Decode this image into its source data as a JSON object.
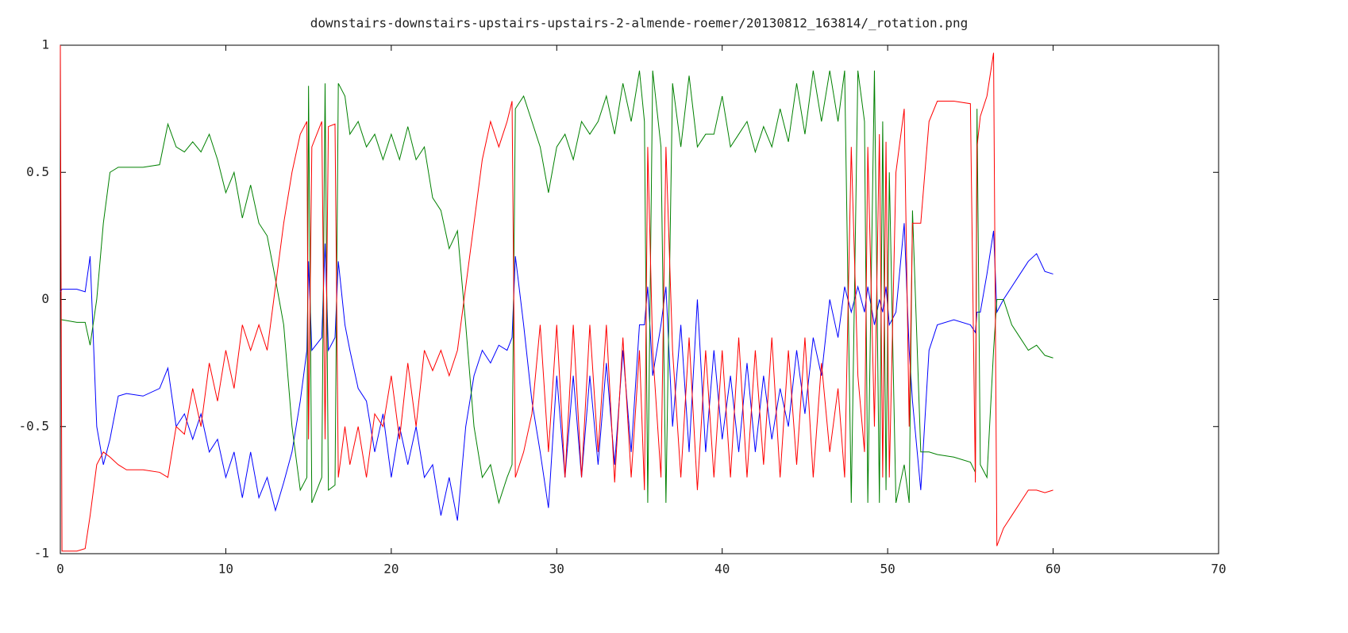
{
  "chart_data": {
    "type": "line",
    "title": "downstairs-downstairs-upstairs-upstairs-2-almende-roemer/20130812_163814/_rotation.png",
    "x": [
      0,
      0.1,
      1,
      1.5,
      1.8,
      2.2,
      2.6,
      3,
      3.5,
      4,
      5,
      6,
      6.5,
      7,
      7.5,
      8,
      8.5,
      9,
      9.5,
      10,
      10.5,
      11,
      11.5,
      12,
      12.5,
      13,
      13.5,
      14,
      14.5,
      14.9,
      15,
      15.2,
      15.8,
      16,
      16.2,
      16.6,
      16.8,
      17.2,
      17.5,
      18,
      18.5,
      19,
      19.5,
      20,
      20.5,
      21,
      21.5,
      22,
      22.5,
      23,
      23.5,
      24,
      24.5,
      25,
      25.5,
      26,
      26.5,
      27,
      27.3,
      27.5,
      28,
      28.5,
      29,
      29.5,
      30,
      30.5,
      31,
      31.5,
      32,
      32.5,
      33,
      33.5,
      34,
      34.5,
      35,
      35.3,
      35.5,
      35.8,
      36.3,
      36.6,
      37,
      37.5,
      38,
      38.5,
      39,
      39.5,
      40,
      40.5,
      41,
      41.5,
      42,
      42.5,
      43,
      43.5,
      44,
      44.5,
      45,
      45.5,
      46,
      46.5,
      47,
      47.4,
      47.8,
      48.2,
      48.6,
      48.8,
      49.2,
      49.5,
      49.7,
      49.9,
      50.1,
      50.5,
      51,
      51.3,
      51.5,
      52,
      52.5,
      53,
      54,
      55,
      55.3,
      55.4,
      55.6,
      56,
      56.4,
      56.6,
      57,
      57.5,
      58,
      58.5,
      59,
      59.5,
      60
    ],
    "series": [
      {
        "color": "#0000ff",
        "values": [
          0.03,
          0.04,
          0.04,
          0.03,
          0.17,
          -0.5,
          -0.65,
          -0.55,
          -0.38,
          -0.37,
          -0.38,
          -0.35,
          -0.27,
          -0.5,
          -0.45,
          -0.55,
          -0.45,
          -0.6,
          -0.55,
          -0.7,
          -0.6,
          -0.78,
          -0.6,
          -0.78,
          -0.7,
          -0.83,
          -0.72,
          -0.6,
          -0.4,
          -0.2,
          0.15,
          -0.2,
          -0.15,
          0.22,
          -0.2,
          -0.15,
          0.15,
          -0.1,
          -0.2,
          -0.35,
          -0.4,
          -0.6,
          -0.45,
          -0.7,
          -0.5,
          -0.65,
          -0.5,
          -0.7,
          -0.65,
          -0.85,
          -0.7,
          -0.87,
          -0.5,
          -0.3,
          -0.2,
          -0.25,
          -0.18,
          -0.2,
          -0.15,
          0.17,
          -0.1,
          -0.4,
          -0.6,
          -0.82,
          -0.3,
          -0.7,
          -0.3,
          -0.7,
          -0.3,
          -0.65,
          -0.25,
          -0.65,
          -0.2,
          -0.6,
          -0.1,
          -0.1,
          0.05,
          -0.3,
          -0.1,
          0.05,
          -0.5,
          -0.1,
          -0.6,
          0,
          -0.6,
          -0.2,
          -0.55,
          -0.3,
          -0.6,
          -0.25,
          -0.6,
          -0.3,
          -0.55,
          -0.35,
          -0.5,
          -0.2,
          -0.45,
          -0.15,
          -0.3,
          0,
          -0.15,
          0.05,
          -0.05,
          0.05,
          -0.05,
          0.05,
          -0.1,
          0,
          -0.05,
          0.05,
          -0.1,
          -0.05,
          0.3,
          -0.2,
          -0.4,
          -0.75,
          -0.2,
          -0.1,
          -0.08,
          -0.1,
          -0.13,
          -0.05,
          -0.05,
          0.1,
          0.27,
          -0.05,
          0,
          0.05,
          0.1,
          0.15,
          0.18,
          0.11,
          0.1
        ]
      },
      {
        "color": "#008000",
        "values": [
          -0.08,
          -0.08,
          -0.09,
          -0.09,
          -0.18,
          0,
          0.3,
          0.5,
          0.52,
          0.52,
          0.52,
          0.53,
          0.69,
          0.6,
          0.58,
          0.62,
          0.58,
          0.65,
          0.55,
          0.42,
          0.5,
          0.32,
          0.45,
          0.3,
          0.25,
          0.08,
          -0.1,
          -0.5,
          -0.75,
          -0.7,
          0.84,
          -0.8,
          -0.7,
          0.85,
          -0.75,
          -0.73,
          0.85,
          0.8,
          0.65,
          0.7,
          0.6,
          0.65,
          0.55,
          0.65,
          0.55,
          0.68,
          0.55,
          0.6,
          0.4,
          0.35,
          0.2,
          0.27,
          -0.1,
          -0.5,
          -0.7,
          -0.65,
          -0.8,
          -0.7,
          -0.65,
          0.75,
          0.8,
          0.7,
          0.6,
          0.42,
          0.6,
          0.65,
          0.55,
          0.7,
          0.65,
          0.7,
          0.8,
          0.65,
          0.85,
          0.7,
          0.9,
          0.7,
          -0.8,
          0.9,
          0.6,
          -0.8,
          0.85,
          0.6,
          0.88,
          0.6,
          0.65,
          0.65,
          0.8,
          0.6,
          0.65,
          0.7,
          0.58,
          0.68,
          0.6,
          0.75,
          0.62,
          0.85,
          0.65,
          0.9,
          0.7,
          0.9,
          0.7,
          0.9,
          -0.8,
          0.9,
          0.7,
          -0.8,
          0.9,
          -0.8,
          0.7,
          -0.75,
          0.5,
          -0.8,
          -0.65,
          -0.8,
          0.35,
          -0.6,
          -0.6,
          -0.61,
          -0.62,
          -0.64,
          -0.68,
          0.75,
          -0.65,
          -0.7,
          -0.2,
          0,
          0,
          -0.1,
          -0.15,
          -0.2,
          -0.18,
          -0.22,
          -0.23
        ]
      },
      {
        "color": "#ff0000",
        "values": [
          1,
          -0.99,
          -0.99,
          -0.98,
          -0.85,
          -0.65,
          -0.6,
          -0.62,
          -0.65,
          -0.67,
          -0.67,
          -0.68,
          -0.7,
          -0.5,
          -0.53,
          -0.35,
          -0.5,
          -0.25,
          -0.4,
          -0.2,
          -0.35,
          -0.1,
          -0.2,
          -0.1,
          -0.2,
          0.05,
          0.3,
          0.5,
          0.65,
          0.7,
          -0.55,
          0.6,
          0.7,
          -0.55,
          0.68,
          0.69,
          -0.7,
          -0.5,
          -0.65,
          -0.5,
          -0.7,
          -0.45,
          -0.5,
          -0.3,
          -0.55,
          -0.25,
          -0.5,
          -0.2,
          -0.28,
          -0.2,
          -0.3,
          -0.2,
          0.05,
          0.3,
          0.55,
          0.7,
          0.6,
          0.7,
          0.78,
          -0.7,
          -0.6,
          -0.45,
          -0.1,
          -0.6,
          -0.1,
          -0.7,
          -0.1,
          -0.7,
          -0.1,
          -0.6,
          -0.1,
          -0.72,
          -0.15,
          -0.7,
          -0.2,
          -0.75,
          0.6,
          -0.2,
          -0.7,
          0.6,
          -0.2,
          -0.7,
          -0.15,
          -0.75,
          -0.2,
          -0.7,
          -0.2,
          -0.7,
          -0.15,
          -0.7,
          -0.2,
          -0.65,
          -0.15,
          -0.7,
          -0.2,
          -0.65,
          -0.15,
          -0.7,
          -0.25,
          -0.6,
          -0.35,
          -0.7,
          0.6,
          -0.3,
          -0.6,
          0.6,
          -0.5,
          0.65,
          -0.7,
          0.62,
          -0.7,
          0.5,
          0.75,
          -0.5,
          0.3,
          0.3,
          0.7,
          0.78,
          0.78,
          0.77,
          -0.72,
          0.6,
          0.72,
          0.8,
          0.97,
          -0.97,
          -0.9,
          -0.85,
          -0.8,
          -0.75,
          -0.75,
          -0.76,
          -0.75
        ]
      }
    ],
    "xlim": [
      0,
      70
    ],
    "xticks": [
      0,
      10,
      20,
      30,
      40,
      50,
      60,
      70
    ],
    "ylim": [
      -1,
      1
    ],
    "yticks": [
      -1,
      -0.5,
      0,
      0.5,
      1
    ],
    "grid": false
  }
}
